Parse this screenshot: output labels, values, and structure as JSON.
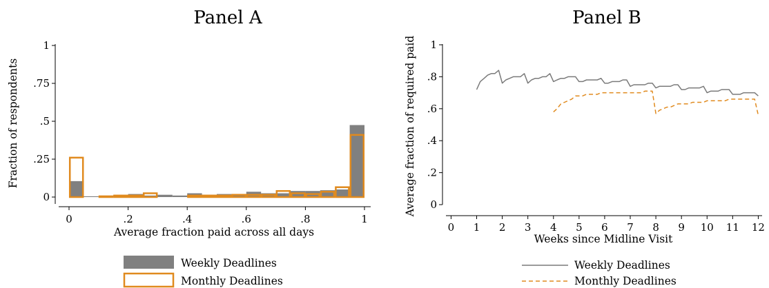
{
  "chart_data": [
    {
      "type": "bar",
      "title": "Panel A",
      "xlabel": "Average fraction paid across all days",
      "ylabel": "Fraction of respondents",
      "xlim": [
        0,
        1
      ],
      "ylim": [
        0,
        1
      ],
      "xticks": [
        {
          "value": 0,
          "label": "0"
        },
        {
          "value": 0.2,
          "label": ".2"
        },
        {
          "value": 0.4,
          "label": ".4"
        },
        {
          "value": 0.6,
          "label": ".6"
        },
        {
          "value": 0.8,
          "label": ".8"
        },
        {
          "value": 1,
          "label": "1"
        }
      ],
      "yticks": [
        {
          "value": 0,
          "label": "0"
        },
        {
          "value": 0.25,
          "label": ".25"
        },
        {
          "value": 0.5,
          "label": ".5"
        },
        {
          "value": 0.75,
          "label": ".75"
        },
        {
          "value": 1,
          "label": "1"
        }
      ],
      "bin_width": 0.05,
      "bin_starts": [
        0,
        0.05,
        0.1,
        0.15,
        0.2,
        0.25,
        0.3,
        0.35,
        0.4,
        0.45,
        0.5,
        0.55,
        0.6,
        0.65,
        0.7,
        0.75,
        0.8,
        0.85,
        0.9,
        0.95
      ],
      "series": [
        {
          "name": "Weekly Deadlines",
          "style": "filled",
          "color": "#808080",
          "values": [
            0.105,
            0.005,
            0.005,
            0.01,
            0.02,
            0.01,
            0.015,
            0.01,
            0.025,
            0.015,
            0.02,
            0.02,
            0.035,
            0.025,
            0.025,
            0.04,
            0.04,
            0.045,
            0.05,
            0.475
          ]
        },
        {
          "name": "Monthly Deadlines",
          "style": "outline",
          "color": "#E08A1E",
          "values": [
            0.26,
            0.0,
            0.005,
            0.01,
            0.01,
            0.025,
            0.0,
            0.0,
            0.01,
            0.01,
            0.01,
            0.015,
            0.015,
            0.015,
            0.04,
            0.025,
            0.02,
            0.035,
            0.065,
            0.41
          ]
        }
      ],
      "legend": "bottom"
    },
    {
      "type": "line",
      "title": "Panel B",
      "xlabel": "Weeks since Midline Visit",
      "ylabel": "Average fraction of required paid",
      "xlim": [
        -0.2,
        12.15
      ],
      "ylim": [
        -0.07,
        1.05
      ],
      "xticks": [
        {
          "value": 0,
          "label": "0"
        },
        {
          "value": 1,
          "label": "1"
        },
        {
          "value": 2,
          "label": "2"
        },
        {
          "value": 3,
          "label": "3"
        },
        {
          "value": 4,
          "label": "4"
        },
        {
          "value": 5,
          "label": "5"
        },
        {
          "value": 6,
          "label": "6"
        },
        {
          "value": 7,
          "label": "7"
        },
        {
          "value": 8,
          "label": "8"
        },
        {
          "value": 9,
          "label": "9"
        },
        {
          "value": 10,
          "label": "10"
        },
        {
          "value": 11,
          "label": "11"
        },
        {
          "value": 12,
          "label": "12"
        }
      ],
      "yticks": [
        {
          "value": 0,
          "label": "0"
        },
        {
          "value": 0.2,
          "label": ".2"
        },
        {
          "value": 0.4,
          "label": ".4"
        },
        {
          "value": 0.6,
          "label": ".6"
        },
        {
          "value": 0.8,
          "label": ".8"
        },
        {
          "value": 1,
          "label": "1"
        }
      ],
      "series": [
        {
          "name": "Weekly Deadlines",
          "style": "solid",
          "color": "#7a7a7a",
          "x": [
            1,
            1.14,
            1.29,
            1.43,
            1.57,
            1.71,
            1.86,
            2,
            2.14,
            2.29,
            2.43,
            2.57,
            2.71,
            2.86,
            3,
            3.14,
            3.29,
            3.43,
            3.57,
            3.71,
            3.86,
            4,
            4.14,
            4.29,
            4.43,
            4.57,
            4.71,
            4.86,
            5,
            5.14,
            5.29,
            5.43,
            5.57,
            5.71,
            5.86,
            6,
            6.14,
            6.29,
            6.43,
            6.57,
            6.71,
            6.86,
            7,
            7.14,
            7.29,
            7.43,
            7.57,
            7.71,
            7.86,
            8,
            8.14,
            8.29,
            8.43,
            8.57,
            8.71,
            8.86,
            9,
            9.14,
            9.29,
            9.43,
            9.57,
            9.71,
            9.86,
            10,
            10.14,
            10.29,
            10.43,
            10.57,
            10.71,
            10.86,
            11,
            11.14,
            11.29,
            11.43,
            11.57,
            11.71,
            11.86,
            12
          ],
          "y": [
            0.72,
            0.77,
            0.79,
            0.81,
            0.82,
            0.82,
            0.84,
            0.76,
            0.78,
            0.79,
            0.8,
            0.8,
            0.8,
            0.82,
            0.76,
            0.78,
            0.79,
            0.79,
            0.8,
            0.8,
            0.82,
            0.77,
            0.78,
            0.79,
            0.79,
            0.8,
            0.8,
            0.8,
            0.77,
            0.77,
            0.78,
            0.78,
            0.78,
            0.78,
            0.79,
            0.76,
            0.76,
            0.77,
            0.77,
            0.77,
            0.78,
            0.78,
            0.74,
            0.75,
            0.75,
            0.75,
            0.75,
            0.76,
            0.76,
            0.73,
            0.74,
            0.74,
            0.74,
            0.74,
            0.75,
            0.75,
            0.72,
            0.72,
            0.73,
            0.73,
            0.73,
            0.73,
            0.74,
            0.7,
            0.71,
            0.71,
            0.71,
            0.72,
            0.72,
            0.72,
            0.69,
            0.69,
            0.69,
            0.7,
            0.7,
            0.7,
            0.7,
            0.68
          ]
        },
        {
          "name": "Monthly Deadlines",
          "style": "dashed",
          "color": "#E08A1E",
          "x": [
            4,
            4.14,
            4.29,
            4.43,
            4.57,
            4.71,
            4.86,
            5,
            5.14,
            5.29,
            5.43,
            5.57,
            5.71,
            5.86,
            6,
            6.14,
            6.29,
            6.43,
            6.57,
            6.71,
            6.86,
            7,
            7.14,
            7.29,
            7.43,
            7.57,
            7.71,
            7.86,
            8,
            8.14,
            8.29,
            8.43,
            8.57,
            8.71,
            8.86,
            9,
            9.14,
            9.29,
            9.43,
            9.57,
            9.71,
            9.86,
            10,
            10.14,
            10.29,
            10.43,
            10.57,
            10.71,
            10.86,
            11,
            11.14,
            11.29,
            11.43,
            11.57,
            11.71,
            11.86,
            12
          ],
          "y": [
            0.58,
            0.6,
            0.63,
            0.64,
            0.65,
            0.66,
            0.68,
            0.68,
            0.68,
            0.69,
            0.69,
            0.69,
            0.69,
            0.7,
            0.7,
            0.7,
            0.7,
            0.7,
            0.7,
            0.7,
            0.7,
            0.7,
            0.7,
            0.7,
            0.7,
            0.71,
            0.71,
            0.71,
            0.57,
            0.59,
            0.6,
            0.61,
            0.61,
            0.62,
            0.63,
            0.63,
            0.63,
            0.63,
            0.64,
            0.64,
            0.64,
            0.64,
            0.65,
            0.65,
            0.65,
            0.65,
            0.65,
            0.65,
            0.66,
            0.66,
            0.66,
            0.66,
            0.66,
            0.66,
            0.66,
            0.66,
            0.56
          ]
        }
      ],
      "legend": "bottom"
    }
  ]
}
